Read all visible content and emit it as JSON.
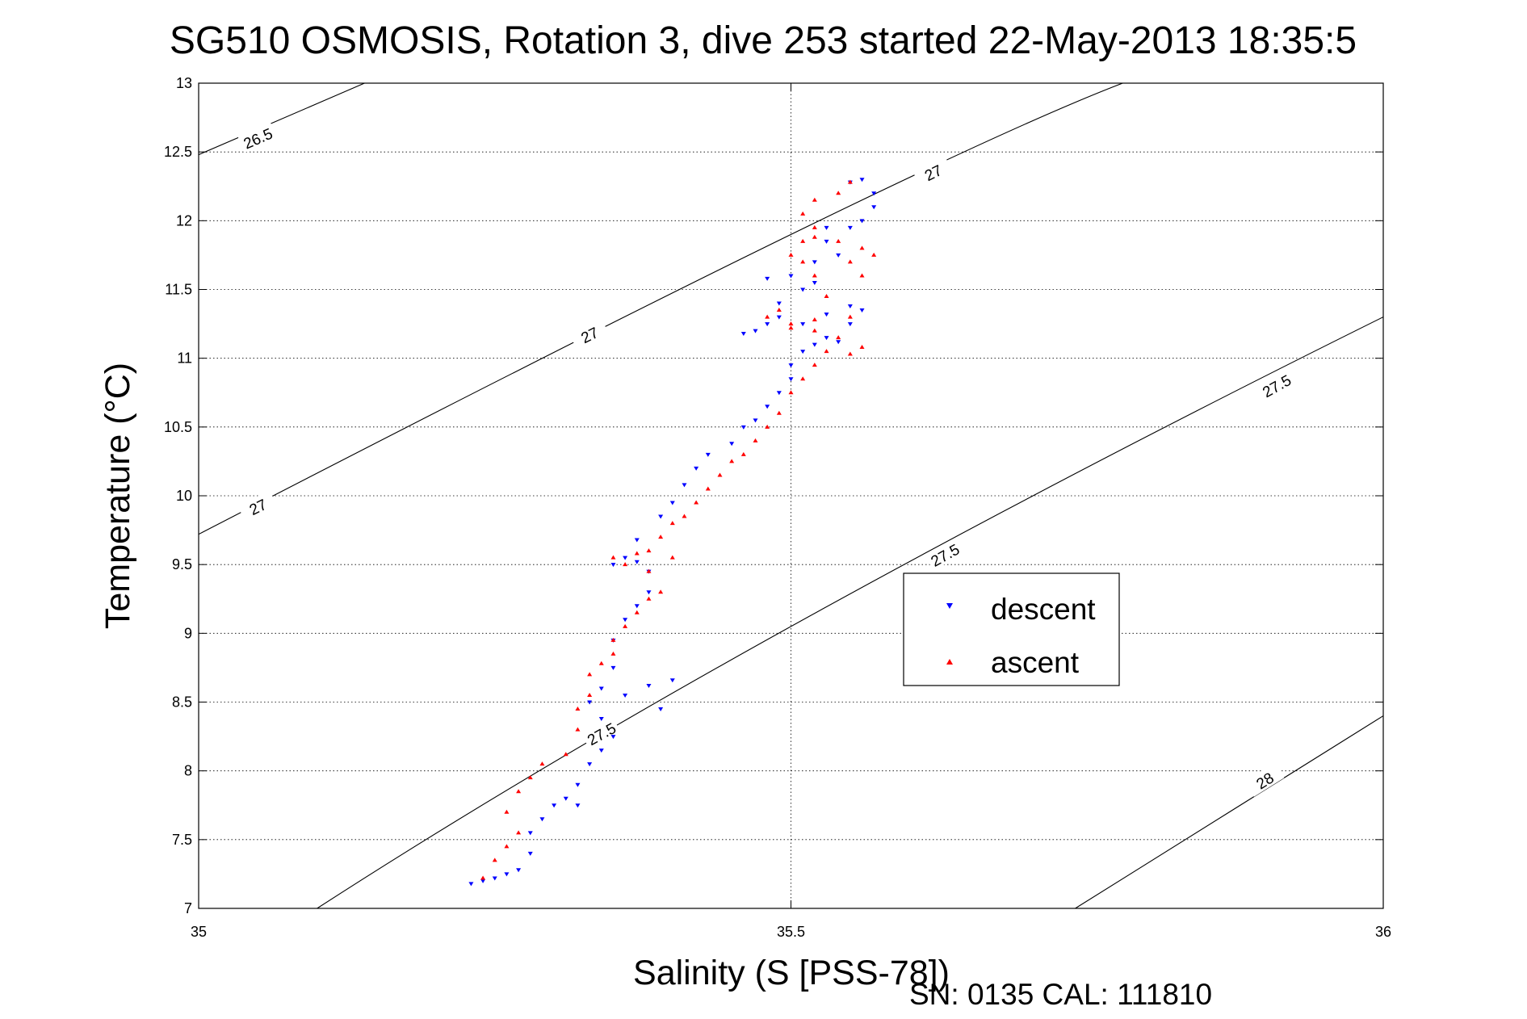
{
  "chart_data": {
    "type": "scatter",
    "title": "SG510 OSMOSIS, Rotation 3, dive 253 started 22-May-2013 18:35:5",
    "xlabel": "Salinity (S [PSS-78])",
    "ylabel": "Temperature (°C)",
    "footer": "SN: 0135  CAL: 111810",
    "xlim": [
      35,
      36
    ],
    "ylim": [
      7,
      13
    ],
    "xticks": [
      35,
      35.5,
      36
    ],
    "xtick_labels": [
      "35",
      "35.5",
      "36"
    ],
    "yticks": [
      7,
      7.5,
      8,
      8.5,
      9,
      9.5,
      10,
      10.5,
      11,
      11.5,
      12,
      12.5,
      13
    ],
    "ytick_labels": [
      "7",
      "7.5",
      "8",
      "8.5",
      "9",
      "9.5",
      "10",
      "10.5",
      "11",
      "11.5",
      "12",
      "12.5",
      "13"
    ],
    "grid": true,
    "legend_position": "center-right",
    "density_contours": [
      {
        "label": "26.5",
        "points": [
          [
            35,
            12.48
          ],
          [
            35.14,
            13
          ]
        ],
        "label_at": [
          [
            35.05,
            12.6
          ]
        ]
      },
      {
        "label": "27",
        "points": [
          [
            35,
            9.72
          ],
          [
            35.5,
            11.9
          ],
          [
            35.78,
            13
          ]
        ],
        "label_at": [
          [
            35.05,
            9.92
          ],
          [
            35.33,
            11.17
          ],
          [
            35.62,
            12.35
          ]
        ]
      },
      {
        "label": "27.5",
        "points": [
          [
            35.1,
            7
          ],
          [
            35.5,
            9.05
          ],
          [
            36,
            11.3
          ]
        ],
        "label_at": [
          [
            35.34,
            8.27
          ],
          [
            35.63,
            9.57
          ],
          [
            35.91,
            10.8
          ]
        ]
      },
      {
        "label": "28",
        "points": [
          [
            35.74,
            7
          ],
          [
            36,
            8.4
          ]
        ],
        "label_at": [
          [
            35.9,
            7.93
          ]
        ]
      }
    ],
    "series": [
      {
        "name": "descent",
        "color": "#0000ff",
        "marker": "triangle-down",
        "points": [
          [
            35.23,
            7.18
          ],
          [
            35.24,
            7.2
          ],
          [
            35.25,
            7.22
          ],
          [
            35.26,
            7.25
          ],
          [
            35.27,
            7.28
          ],
          [
            35.28,
            7.4
          ],
          [
            35.28,
            7.55
          ],
          [
            35.29,
            7.65
          ],
          [
            35.3,
            7.75
          ],
          [
            35.31,
            7.8
          ],
          [
            35.32,
            7.75
          ],
          [
            35.32,
            7.9
          ],
          [
            35.33,
            8.05
          ],
          [
            35.34,
            8.15
          ],
          [
            35.35,
            8.25
          ],
          [
            35.34,
            8.38
          ],
          [
            35.33,
            8.5
          ],
          [
            35.34,
            8.6
          ],
          [
            35.36,
            8.55
          ],
          [
            35.38,
            8.62
          ],
          [
            35.4,
            8.66
          ],
          [
            35.39,
            8.45
          ],
          [
            35.35,
            8.75
          ],
          [
            35.35,
            8.95
          ],
          [
            35.36,
            9.1
          ],
          [
            35.37,
            9.2
          ],
          [
            35.38,
            9.3
          ],
          [
            35.38,
            9.45
          ],
          [
            35.37,
            9.52
          ],
          [
            35.36,
            9.55
          ],
          [
            35.35,
            9.5
          ],
          [
            35.37,
            9.68
          ],
          [
            35.39,
            9.85
          ],
          [
            35.4,
            9.95
          ],
          [
            35.41,
            10.08
          ],
          [
            35.42,
            10.2
          ],
          [
            35.43,
            10.3
          ],
          [
            35.45,
            10.38
          ],
          [
            35.46,
            10.5
          ],
          [
            35.47,
            10.55
          ],
          [
            35.48,
            10.65
          ],
          [
            35.49,
            10.75
          ],
          [
            35.5,
            10.85
          ],
          [
            35.5,
            10.95
          ],
          [
            35.51,
            11.05
          ],
          [
            35.52,
            11.1
          ],
          [
            35.53,
            11.15
          ],
          [
            35.54,
            11.12
          ],
          [
            35.55,
            11.25
          ],
          [
            35.56,
            11.35
          ],
          [
            35.55,
            11.38
          ],
          [
            35.53,
            11.32
          ],
          [
            35.51,
            11.25
          ],
          [
            35.49,
            11.3
          ],
          [
            35.48,
            11.25
          ],
          [
            35.47,
            11.2
          ],
          [
            35.46,
            11.18
          ],
          [
            35.49,
            11.4
          ],
          [
            35.51,
            11.5
          ],
          [
            35.52,
            11.55
          ],
          [
            35.5,
            11.6
          ],
          [
            35.48,
            11.58
          ],
          [
            35.52,
            11.7
          ],
          [
            35.53,
            11.85
          ],
          [
            35.55,
            11.95
          ],
          [
            35.56,
            12.0
          ],
          [
            35.57,
            12.1
          ],
          [
            35.57,
            12.2
          ],
          [
            35.56,
            12.3
          ],
          [
            35.55,
            12.28
          ],
          [
            35.53,
            11.95
          ],
          [
            35.54,
            11.75
          ]
        ]
      },
      {
        "name": "ascent",
        "color": "#ff0000",
        "marker": "triangle-up",
        "points": [
          [
            35.24,
            7.22
          ],
          [
            35.25,
            7.35
          ],
          [
            35.26,
            7.45
          ],
          [
            35.27,
            7.55
          ],
          [
            35.26,
            7.7
          ],
          [
            35.27,
            7.85
          ],
          [
            35.28,
            7.95
          ],
          [
            35.29,
            8.05
          ],
          [
            35.31,
            8.12
          ],
          [
            35.32,
            8.3
          ],
          [
            35.32,
            8.45
          ],
          [
            35.33,
            8.55
          ],
          [
            35.33,
            8.7
          ],
          [
            35.34,
            8.78
          ],
          [
            35.35,
            8.85
          ],
          [
            35.35,
            8.95
          ],
          [
            35.36,
            9.05
          ],
          [
            35.37,
            9.15
          ],
          [
            35.38,
            9.25
          ],
          [
            35.39,
            9.3
          ],
          [
            35.38,
            9.45
          ],
          [
            35.36,
            9.5
          ],
          [
            35.35,
            9.55
          ],
          [
            35.37,
            9.58
          ],
          [
            35.4,
            9.55
          ],
          [
            35.38,
            9.6
          ],
          [
            35.39,
            9.7
          ],
          [
            35.4,
            9.8
          ],
          [
            35.41,
            9.85
          ],
          [
            35.42,
            9.95
          ],
          [
            35.43,
            10.05
          ],
          [
            35.44,
            10.15
          ],
          [
            35.45,
            10.25
          ],
          [
            35.46,
            10.3
          ],
          [
            35.47,
            10.4
          ],
          [
            35.48,
            10.5
          ],
          [
            35.49,
            10.6
          ],
          [
            35.5,
            10.75
          ],
          [
            35.51,
            10.85
          ],
          [
            35.52,
            10.95
          ],
          [
            35.53,
            11.05
          ],
          [
            35.55,
            11.03
          ],
          [
            35.56,
            11.08
          ],
          [
            35.54,
            11.15
          ],
          [
            35.52,
            11.2
          ],
          [
            35.5,
            11.25
          ],
          [
            35.49,
            11.35
          ],
          [
            35.48,
            11.3
          ],
          [
            35.5,
            11.22
          ],
          [
            35.52,
            11.28
          ],
          [
            35.55,
            11.3
          ],
          [
            35.53,
            11.45
          ],
          [
            35.52,
            11.6
          ],
          [
            35.51,
            11.7
          ],
          [
            35.5,
            11.75
          ],
          [
            35.51,
            11.85
          ],
          [
            35.52,
            11.88
          ],
          [
            35.54,
            11.85
          ],
          [
            35.55,
            11.7
          ],
          [
            35.56,
            11.6
          ],
          [
            35.57,
            11.75
          ],
          [
            35.56,
            11.8
          ],
          [
            35.52,
            11.95
          ],
          [
            35.51,
            12.05
          ],
          [
            35.52,
            12.15
          ],
          [
            35.54,
            12.2
          ],
          [
            35.55,
            12.28
          ]
        ]
      }
    ]
  }
}
